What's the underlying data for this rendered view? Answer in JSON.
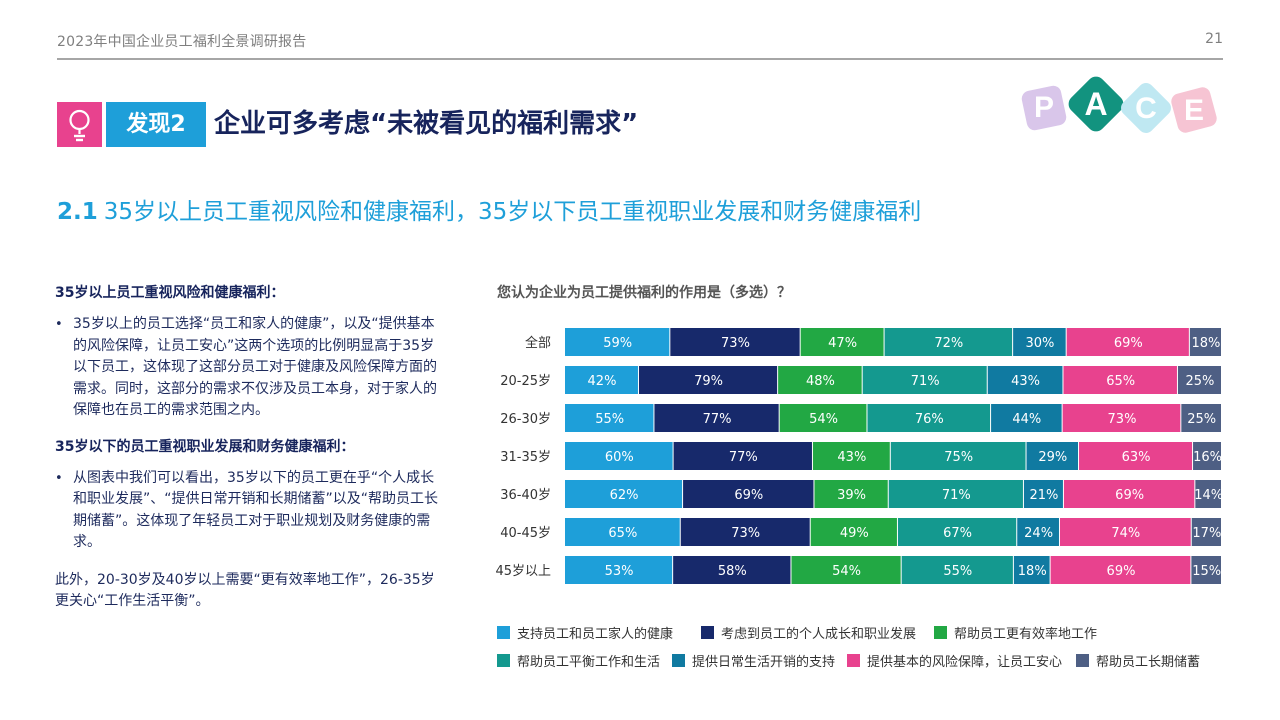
{
  "header": {
    "report_title": "2023年中国企业员工福利全景调研报告",
    "page_number": "21"
  },
  "finding": {
    "tag": "发现2",
    "title": "企业可多考虑“未被看见的福利需求”"
  },
  "logo": {
    "letters": [
      "P",
      "A",
      "C",
      "E"
    ]
  },
  "section": {
    "number": "2.1",
    "heading": "35岁以上员工重视风险和健康福利，35岁以下员工重视职业发展和财务健康福利"
  },
  "left": {
    "heading1": "35岁以上员工重视风险和健康福利：",
    "bullet1": "35岁以上的员工选择“员工和家人的健康”，以及“提供基本的风险保障，让员工安心”这两个选项的比例明显高于35岁以下员工，这体现了这部分员工对于健康及风险保障方面的需求。同时，这部分的需求不仅涉及员工本身，对于家人的保障也在员工的需求范围之内。",
    "heading2": "35岁以下的员工重视职业发展和财务健康福利：",
    "bullet2": "从图表中我们可以看出，35岁以下的员工更在乎“个人成长和职业发展”、“提供日常开销和长期储蓄”以及“帮助员工长期储蓄”。这体现了年轻员工对于职业规划及财务健康的需求。",
    "note": "此外，20-30岁及40岁以上需要“更有效率地工作”，26-35岁更关心“工作生活平衡”。",
    "bullet_symbol": "•"
  },
  "chart_data": {
    "type": "bar",
    "stacked": true,
    "orientation": "horizontal",
    "title": "您认为企业为员工提供福利的作用是（多选）？",
    "categories": [
      "全部",
      "20-25岁",
      "26-30岁",
      "31-35岁",
      "36-40岁",
      "40-45岁",
      "45岁以上"
    ],
    "series": [
      {
        "name": "支持员工和员工家人的健康",
        "color": "#1e9fd9",
        "values": [
          59,
          42,
          55,
          60,
          62,
          65,
          53
        ]
      },
      {
        "name": "考虑到员工的个人成长和职业发展",
        "color": "#17296b",
        "values": [
          73,
          79,
          77,
          77,
          69,
          73,
          58
        ]
      },
      {
        "name": "帮助员工更有效率地工作",
        "color": "#22a844",
        "values": [
          47,
          48,
          54,
          43,
          39,
          49,
          54
        ]
      },
      {
        "name": "帮助员工平衡工作和生活",
        "color": "#14998f",
        "values": [
          72,
          71,
          76,
          75,
          71,
          67,
          55
        ]
      },
      {
        "name": "提供日常生活开销的支持",
        "color": "#107aa1",
        "values": [
          30,
          43,
          44,
          29,
          21,
          24,
          18
        ]
      },
      {
        "name": "提供基本的风险保障，让员工安心",
        "color": "#e8428e",
        "values": [
          69,
          65,
          73,
          63,
          69,
          74,
          69
        ]
      },
      {
        "name": "帮助员工长期储蓄",
        "color": "#4e5f84",
        "values": [
          18,
          25,
          25,
          16,
          14,
          17,
          15
        ]
      }
    ],
    "value_suffix": "%",
    "legend_position": "bottom"
  }
}
